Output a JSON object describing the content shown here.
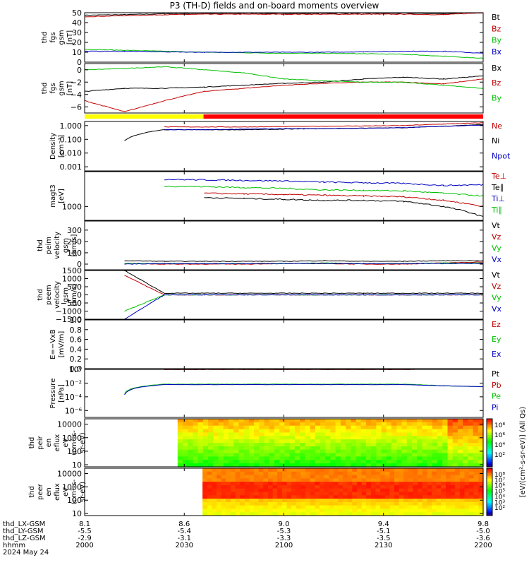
{
  "title": "P3 (TH-D) fields and on-board moments overview",
  "date_label": "2024 May 24",
  "footer_labels": [
    "thd_LX-GSM",
    "thd_LY-GSM",
    "thd_LZ-GSM",
    "hhmm"
  ],
  "time_ticks": [
    {
      "lx": "8.1",
      "ly": "-5.5",
      "lz": "-2.9",
      "hhmm": "2000"
    },
    {
      "lx": "8.6",
      "ly": "-5.4",
      "lz": "-3.1",
      "hhmm": "2030"
    },
    {
      "lx": "9.0",
      "ly": "-5.3",
      "lz": "-3.3",
      "hhmm": "2100"
    },
    {
      "lx": "9.4",
      "ly": "-5.1",
      "lz": "-3.5",
      "hhmm": "2130"
    },
    {
      "lx": "9.8",
      "ly": "-5.0",
      "lz": "-3.6",
      "hhmm": "2200"
    }
  ],
  "mode_bar": {
    "colors": [
      "#ffff00",
      "#ff0000"
    ],
    "switch_time": 2035.8
  },
  "colorbar": {
    "label": "[eV/(cm²-s-sr-eV)] (All Qs)",
    "ticks": [
      "10⁸",
      "10⁶",
      "10⁴",
      "10²"
    ],
    "ticks_lower": [
      "10⁸",
      "10⁷",
      "10⁶",
      "10⁵",
      "10⁴",
      "10³",
      "10²"
    ]
  },
  "chart_data": [
    {
      "type": "line",
      "ylabel": [
        "thd",
        "fgs",
        "gsm",
        "[nT]"
      ],
      "ylim": [
        0,
        50
      ],
      "yticks": [
        "50",
        "40",
        "30",
        "20",
        "10",
        "0"
      ],
      "legend": [
        {
          "name": "Bt",
          "color": "#000000"
        },
        {
          "name": "Bz",
          "color": "#c00000"
        },
        {
          "name": "By",
          "color": "#00c000"
        },
        {
          "name": "Bx",
          "color": "#0000c0"
        }
      ],
      "series": [
        {
          "name": "Bt",
          "values": [
            47.5,
            48,
            49,
            49,
            49,
            49,
            49.5,
            49.5,
            49.5,
            49,
            51
          ]
        },
        {
          "name": "Bz",
          "values": [
            46,
            47,
            48,
            48.5,
            48.5,
            48.5,
            48.5,
            48.5,
            48.5,
            48,
            50
          ]
        },
        {
          "name": "By",
          "values": [
            13,
            12,
            11,
            10,
            9.5,
            9,
            9,
            8.5,
            8,
            6,
            4
          ]
        },
        {
          "name": "Bx",
          "values": [
            11,
            11,
            10.5,
            10,
            10,
            10,
            10,
            10.5,
            11,
            11,
            9
          ]
        }
      ]
    },
    {
      "type": "line",
      "ylabel": [
        "thd",
        "fgs",
        "gsm",
        "[nT]"
      ],
      "ylim": [
        -7,
        1
      ],
      "yticks": [
        "0",
        "−2",
        "−4",
        "−6"
      ],
      "legend": [
        {
          "name": "Bx",
          "color": "#000000"
        },
        {
          "name": "Bz",
          "color": "#c00000"
        },
        {
          "name": "By",
          "color": "#00c000"
        }
      ],
      "series": [
        {
          "name": "Bx",
          "values": [
            -3.5,
            -3,
            -3,
            -2.8,
            -2.5,
            -2.2,
            -2,
            -1.5,
            -1.2,
            -1.5,
            -1
          ]
        },
        {
          "name": "Bz",
          "values": [
            -5,
            -6.8,
            -5,
            -3.5,
            -3,
            -2.5,
            -2.2,
            -2,
            -2,
            -2.3,
            -1.5
          ]
        },
        {
          "name": "By",
          "values": [
            0,
            0.2,
            0.5,
            0,
            -0.5,
            -1.5,
            -1.8,
            -2,
            -2,
            -2.5,
            -3
          ]
        }
      ]
    },
    {
      "type": "line",
      "ylabel": [
        "Density",
        "[cm⁻³]"
      ],
      "ylim": [
        0.0005,
        2
      ],
      "yscale": "log",
      "yticks": [
        "1.000",
        "0.100",
        "0.010",
        "0.001"
      ],
      "legend": [
        {
          "name": "Ne",
          "color": "#c00000"
        },
        {
          "name": "Ni",
          "color": "#000000"
        },
        {
          "name": "Npot",
          "color": "#0000c0"
        }
      ],
      "series": [
        {
          "name": "Ne",
          "values": [
            null,
            null,
            0.8,
            0.8,
            0.8,
            0.85,
            0.9,
            0.95,
            1.0,
            1.3,
            1.6
          ]
        },
        {
          "name": "Ni",
          "values": [
            null,
            0.08,
            0.5,
            0.5,
            0.5,
            0.55,
            0.6,
            0.65,
            0.7,
            0.9,
            1.2
          ]
        },
        {
          "name": "Npot",
          "values": [
            null,
            null,
            0.5,
            0.5,
            0.55,
            0.6,
            0.6,
            0.65,
            0.7,
            0.9,
            1.1
          ]
        }
      ]
    },
    {
      "type": "line",
      "ylabel": [
        "magt3",
        "[eV]"
      ],
      "ylim": [
        400,
        10000
      ],
      "yscale": "log",
      "yticks": [
        "1000"
      ],
      "legend": [
        {
          "name": "Te⊥",
          "color": "#c00000"
        },
        {
          "name": "Te∥",
          "color": "#000000"
        },
        {
          "name": "Ti⊥",
          "color": "#0000c0"
        },
        {
          "name": "Ti∥",
          "color": "#00c000"
        }
      ],
      "series": [
        {
          "name": "Ti⊥",
          "values": [
            null,
            null,
            6000,
            5800,
            5600,
            5400,
            5000,
            4800,
            4600,
            4000,
            4200
          ]
        },
        {
          "name": "Ti∥",
          "values": [
            null,
            null,
            3800,
            3700,
            3500,
            3300,
            3000,
            2900,
            2800,
            2400,
            2000
          ]
        },
        {
          "name": "Te⊥",
          "values": [
            null,
            null,
            null,
            2400,
            2300,
            2200,
            2100,
            2000,
            1900,
            1500,
            1000
          ]
        },
        {
          "name": "Te∥",
          "values": [
            null,
            null,
            null,
            1800,
            1700,
            1600,
            1500,
            1500,
            1400,
            1000,
            500
          ]
        }
      ]
    },
    {
      "type": "line",
      "ylabel": [
        "thd",
        "peim",
        "velocity",
        "gsm",
        "[km/s]"
      ],
      "ylim": [
        -50,
        380
      ],
      "yticks": [
        "300",
        "200",
        "100",
        "0"
      ],
      "legend": [
        {
          "name": "Vt",
          "color": "#000000"
        },
        {
          "name": "Vz",
          "color": "#c00000"
        },
        {
          "name": "Vy",
          "color": "#00c000"
        },
        {
          "name": "Vx",
          "color": "#0000c0"
        }
      ],
      "series": [
        {
          "name": "Vt",
          "values": [
            null,
            30,
            25,
            25,
            25,
            25,
            30,
            25,
            25,
            30,
            30
          ]
        },
        {
          "name": "Vz",
          "values": [
            null,
            5,
            0,
            0,
            0,
            5,
            5,
            0,
            0,
            10,
            20
          ]
        },
        {
          "name": "Vy",
          "values": [
            null,
            5,
            5,
            5,
            5,
            5,
            10,
            5,
            5,
            10,
            10
          ]
        },
        {
          "name": "Vx",
          "values": [
            null,
            0,
            5,
            5,
            5,
            5,
            5,
            5,
            5,
            5,
            5
          ]
        }
      ]
    },
    {
      "type": "line",
      "ylabel": [
        "thd",
        "peem",
        "velocity",
        "gsm",
        "[km/s]"
      ],
      "ylim": [
        -1500,
        1500
      ],
      "yticks": [
        "1500",
        "1000",
        "500",
        "0",
        "−500",
        "−1000",
        "−1500"
      ],
      "legend": [
        {
          "name": "Vt",
          "color": "#000000"
        },
        {
          "name": "Vz",
          "color": "#c00000"
        },
        {
          "name": "Vy",
          "color": "#00c000"
        },
        {
          "name": "Vx",
          "color": "#0000c0"
        }
      ],
      "series": [
        {
          "name": "Vt",
          "values": [
            null,
            1500,
            100,
            100,
            100,
            100,
            100,
            100,
            100,
            100,
            100
          ]
        },
        {
          "name": "Vz",
          "values": [
            null,
            1200,
            0,
            0,
            0,
            0,
            0,
            0,
            0,
            0,
            0
          ]
        },
        {
          "name": "Vy",
          "values": [
            null,
            -1000,
            0,
            0,
            0,
            0,
            0,
            0,
            0,
            0,
            0
          ]
        },
        {
          "name": "Vx",
          "values": [
            null,
            -1500,
            0,
            0,
            0,
            0,
            0,
            0,
            0,
            0,
            0
          ]
        }
      ]
    },
    {
      "type": "line",
      "ylabel": [
        "E=−VxB",
        "[mV/m]"
      ],
      "ylim": [
        0,
        1
      ],
      "yticks": [
        "1.0",
        "0.8",
        "0.6",
        "0.4",
        "0.2",
        "0.0"
      ],
      "legend": [
        {
          "name": "Ez",
          "color": "#c00000"
        },
        {
          "name": "Ey",
          "color": "#00c000"
        },
        {
          "name": "Ex",
          "color": "#0000c0"
        }
      ],
      "series": []
    },
    {
      "type": "line",
      "ylabel": [
        "Pressure",
        "[nPa]"
      ],
      "ylim": [
        1e-07,
        1
      ],
      "yscale": "log",
      "yticks": [
        "10⁰",
        "10⁻²",
        "10⁻⁴",
        "10⁻⁶"
      ],
      "legend": [
        {
          "name": "Pt",
          "color": "#000000"
        },
        {
          "name": "Pb",
          "color": "#c00000"
        },
        {
          "name": "Pe",
          "color": "#00c000"
        },
        {
          "name": "Pi",
          "color": "#0000c0"
        }
      ],
      "series": [
        {
          "name": "Pt",
          "values": [
            null,
            null,
            1.0,
            1.0,
            1.0,
            1.0,
            1.0,
            1.0,
            1.0,
            1.1,
            1.1
          ]
        },
        {
          "name": "Pb",
          "values": [
            null,
            null,
            0.95,
            0.95,
            0.95,
            0.95,
            0.95,
            0.95,
            0.95,
            1.05,
            1.05
          ]
        },
        {
          "name": "Pe",
          "values": [
            null,
            0.0003,
            0.007,
            0.007,
            0.007,
            0.007,
            0.007,
            0.007,
            0.007,
            0.004,
            0.003
          ]
        },
        {
          "name": "Pi",
          "values": [
            null,
            0.0002,
            0.006,
            0.006,
            0.006,
            0.006,
            0.006,
            0.006,
            0.006,
            0.004,
            0.003
          ]
        }
      ]
    },
    {
      "type": "heatmap",
      "ylabel": [
        "thd",
        "peir",
        "en",
        "eflux",
        "eV",
        "(cm²-s-",
        "sr-eV)"
      ],
      "ylim": [
        7,
        25000
      ],
      "yscale": "log",
      "yticks": [
        "10000",
        "1000",
        "100",
        "10"
      ],
      "start_time": 2028.0
    },
    {
      "type": "heatmap",
      "ylabel": [
        "thd",
        "peer",
        "en",
        "eflux",
        "eV",
        "(cm²-s-",
        "sr-eV)"
      ],
      "ylim": [
        7,
        25000
      ],
      "yscale": "log",
      "yticks": [
        "10000",
        "1000",
        "100",
        "10"
      ],
      "start_time": 2035.5
    }
  ]
}
